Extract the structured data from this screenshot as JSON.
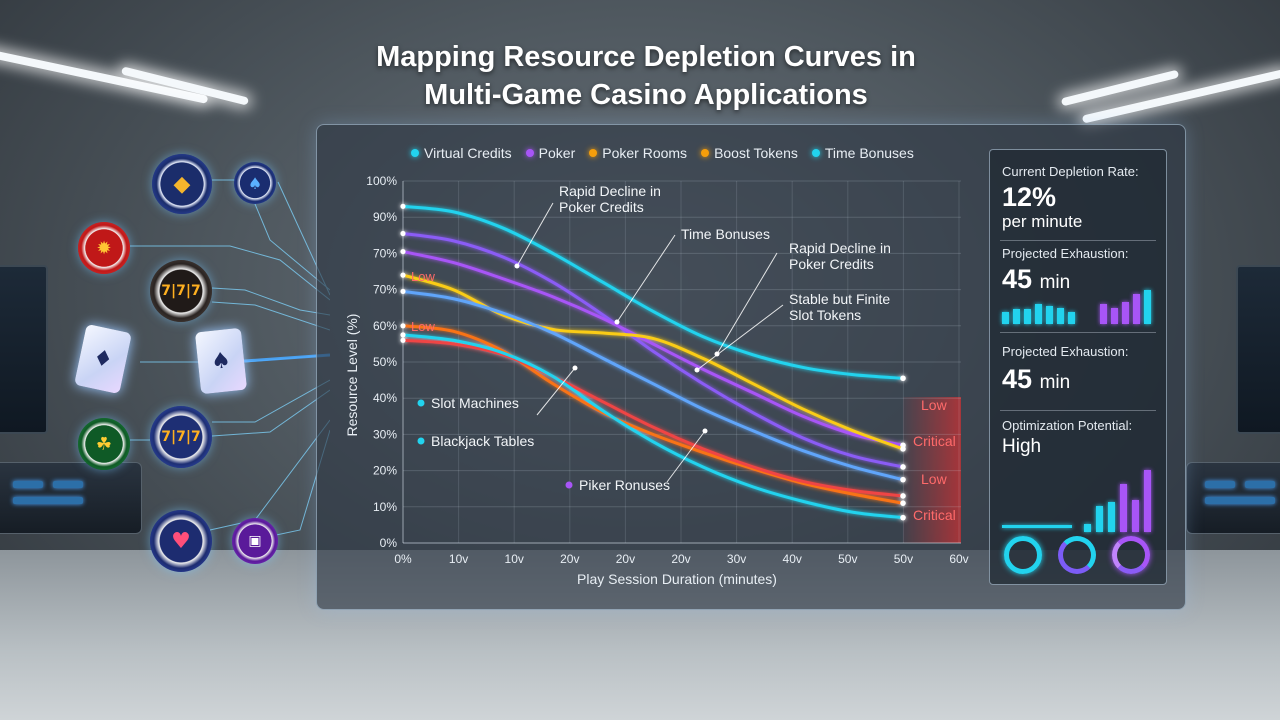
{
  "title_line1": "Mapping Resource Depletion Curves in",
  "title_line2": "Multi-Game Casino Applications",
  "legend": [
    {
      "label": "Virtual Credits",
      "color": "#22d3ee"
    },
    {
      "label": "Poker",
      "color": "#a855f7"
    },
    {
      "label": "Poker Rooms",
      "color": "#f59e0b"
    },
    {
      "label": "Boost Tokens",
      "color": "#f59e0b"
    },
    {
      "label": "Time Bonuses",
      "color": "#22d3ee"
    }
  ],
  "chart_data": {
    "type": "line",
    "title": "",
    "xlabel": "Play Session Duration (minutes)",
    "ylabel": "Resource Level (%)",
    "x_tick_labels": [
      "0%",
      "10v",
      "10v",
      "20v",
      "20v",
      "20v",
      "30v",
      "40v",
      "50v",
      "50v",
      "60v"
    ],
    "y_tick_labels": [
      "0%",
      "10%",
      "20%",
      "30%",
      "40%",
      "50%",
      "60%",
      "70%",
      "70%",
      "90%",
      "100%"
    ],
    "ylim": [
      0,
      100
    ],
    "grid": true,
    "x": [
      0,
      5,
      10,
      15,
      20,
      25,
      30,
      35,
      40,
      45,
      50
    ],
    "series": [
      {
        "color": "#22d3ee",
        "values": [
          93,
          91.5,
          87,
          80,
          72,
          64,
          57,
          52,
          48.5,
          46.5,
          45.5
        ]
      },
      {
        "color": "#8b5cf6",
        "values": [
          85.5,
          83.5,
          79,
          72,
          63,
          53,
          44,
          36,
          29,
          24,
          21
        ]
      },
      {
        "color": "#a855f7",
        "values": [
          80.5,
          77.5,
          73,
          68,
          62,
          55,
          48,
          41.5,
          35,
          30,
          27
        ]
      },
      {
        "color": "#facc15",
        "values": [
          74,
          70,
          63,
          59,
          58,
          56.5,
          51,
          44,
          37,
          31,
          26
        ]
      },
      {
        "color": "#60a5fa",
        "values": [
          69.5,
          67.5,
          63.5,
          58,
          51,
          44,
          37,
          31,
          25.5,
          21,
          17.5
        ]
      },
      {
        "color": "#f97316",
        "values": [
          60,
          58.5,
          53,
          44,
          36,
          30,
          25,
          20.5,
          16.5,
          13.5,
          11
        ]
      },
      {
        "color": "#ef4444",
        "values": [
          56,
          55,
          52,
          46,
          39,
          32,
          26,
          21,
          17,
          14.5,
          13
        ]
      },
      {
        "color": "#22d3ee",
        "values": [
          57.5,
          56,
          52.5,
          46,
          36.5,
          28,
          21,
          15.5,
          11.5,
          8.5,
          7
        ]
      }
    ],
    "annotations": [
      {
        "text": "Rapid Decline in Poker Credits",
        "line1": "Rapid Decline in",
        "line2": "Poker Credits"
      },
      {
        "text": "Time Bonuses"
      },
      {
        "text": "Rapid Decline in Poker Credits",
        "line1": "Rapid Decline in",
        "line2": "Poker Credits"
      },
      {
        "text": "Stable but Finite Slot Tokens",
        "line1": "Stable but Finite",
        "line2": "Slot Tokens"
      },
      {
        "text": "Low"
      },
      {
        "text": "Low"
      },
      {
        "text": "Slot Machines"
      },
      {
        "text": "Blackjack Tables"
      },
      {
        "text": "Piker Ronuses"
      }
    ],
    "end_labels": [
      "Low",
      "Critical",
      "Low",
      "Critical"
    ]
  },
  "stats": {
    "depletion_label": "Current Depletion Rate:",
    "depletion_value": "12%",
    "depletion_unit": "per minute",
    "exhaustion1_label": "Projected Exhaustion:",
    "exhaustion1_value": "45",
    "exhaustion1_unit": "min",
    "exhaustion2_label": "Projected Exhaustion:",
    "exhaustion2_value": "45",
    "exhaustion2_unit": "min",
    "optimization_label": "Optimization Potential:",
    "optimization_value": "High"
  },
  "icons": [
    "diamond-chip-icon",
    "spade-chip-icon",
    "flame-chip-icon",
    "slot-reel-chip-icon",
    "ace-of-diamonds-card-icon",
    "ace-of-spades-card-icon",
    "leaf-chip-icon",
    "slot-machine-chip-icon",
    "heart-chip-icon",
    "purple-chip-icon"
  ]
}
